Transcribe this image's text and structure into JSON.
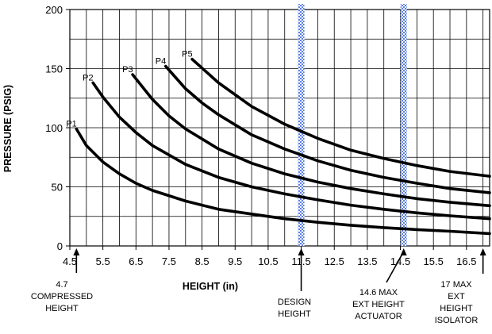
{
  "chart_data": {
    "type": "line",
    "title": "",
    "xlabel": "HEIGHT (in)",
    "ylabel": "PRESSURE (PSIG)",
    "xlim": [
      4.5,
      17.2
    ],
    "ylim": [
      0,
      200
    ],
    "x_ticks": [
      "4.5",
      "5.5",
      "6.5",
      "7.5",
      "8.5",
      "9.5",
      "10.5",
      "11.5",
      "12.5",
      "13.5",
      "14.5",
      "15.5",
      "16.5"
    ],
    "y_ticks": [
      "0",
      "50",
      "100",
      "150",
      "200"
    ],
    "grid": true,
    "series": [
      {
        "name": "P1",
        "x": [
          4.7,
          5.0,
          5.5,
          6.0,
          6.5,
          7.0,
          8.0,
          9.0,
          10.0,
          11.0,
          12.0,
          13.0,
          14.0,
          15.0,
          16.0,
          17.2
        ],
        "y": [
          99,
          85,
          71,
          61,
          53,
          47,
          38,
          31,
          27,
          23,
          20,
          17.5,
          15.5,
          13.8,
          12.4,
          10.5
        ]
      },
      {
        "name": "P2",
        "x": [
          5.2,
          5.5,
          6.0,
          6.5,
          7.0,
          8.0,
          9.0,
          10.0,
          11.0,
          12.0,
          13.0,
          14.0,
          15.0,
          16.0,
          17.2
        ],
        "y": [
          138,
          126,
          109,
          96,
          85,
          69,
          58,
          50,
          44,
          39,
          34.5,
          31,
          28,
          25.5,
          23
        ]
      },
      {
        "name": "P3",
        "x": [
          6.4,
          7.0,
          7.5,
          8.0,
          9.0,
          10.0,
          11.0,
          12.0,
          13.0,
          14.0,
          15.0,
          16.0,
          17.2
        ],
        "y": [
          145,
          124,
          110,
          99,
          82,
          70,
          61,
          54,
          48.5,
          44,
          40,
          37,
          34
        ]
      },
      {
        "name": "P4",
        "x": [
          7.4,
          8.0,
          8.5,
          9.0,
          10.0,
          11.0,
          12.0,
          13.0,
          14.0,
          15.0,
          16.0,
          17.2
        ],
        "y": [
          152,
          133,
          121,
          111,
          94,
          82,
          72,
          64,
          58,
          53,
          48.5,
          45
        ]
      },
      {
        "name": "P5",
        "x": [
          8.2,
          9.0,
          10.0,
          11.0,
          12.0,
          13.0,
          14.0,
          15.0,
          16.0,
          17.2
        ],
        "y": [
          158,
          138,
          118,
          103,
          91,
          81,
          74,
          68,
          63,
          59
        ]
      }
    ],
    "reference_lines": [
      {
        "x": 11.5,
        "style": "checkered blue band"
      },
      {
        "x": 14.6,
        "style": "checkered blue band"
      }
    ],
    "annotations": [
      {
        "x": 4.7,
        "lines": [
          "4.7",
          "COMPRESSED",
          "HEIGHT"
        ]
      },
      {
        "x": 11.5,
        "lines": [
          "DESIGN",
          "HEIGHT"
        ]
      },
      {
        "x": 14.6,
        "lines": [
          "14.6 MAX",
          "EXT HEIGHT",
          "ACTUATOR"
        ]
      },
      {
        "x": 17.0,
        "lines": [
          "17 MAX",
          "EXT",
          "HEIGHT",
          "ISOLATOR"
        ]
      }
    ],
    "colors": {
      "curve": "#000000",
      "reference_band": "#5a7fe6",
      "grid": "#000000"
    }
  }
}
